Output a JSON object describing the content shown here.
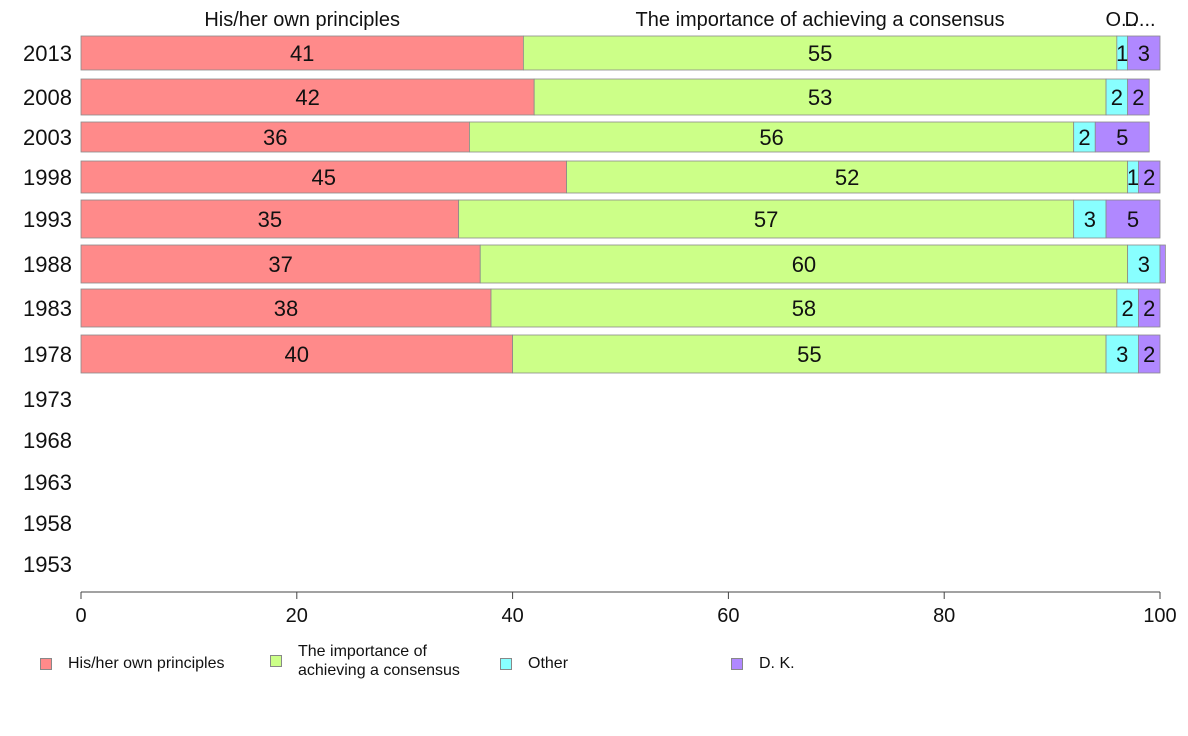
{
  "chart_data": {
    "type": "bar",
    "orientation": "horizontal",
    "stacked": true,
    "categories": [
      "2013",
      "2008",
      "2003",
      "1998",
      "1993",
      "1988",
      "1983",
      "1978",
      "1973",
      "1968",
      "1963",
      "1958",
      "1953"
    ],
    "series": [
      {
        "name": "His/her own principles",
        "header": "His/her own principles",
        "color": "#ff8a8a",
        "values": [
          41,
          42,
          36,
          45,
          35,
          37,
          38,
          40,
          null,
          null,
          null,
          null,
          null
        ]
      },
      {
        "name": "The importance of achieving a consensus",
        "header": "The importance of achieving a consensus",
        "color": "#ccff88",
        "values": [
          55,
          53,
          56,
          52,
          57,
          60,
          58,
          55,
          null,
          null,
          null,
          null,
          null
        ]
      },
      {
        "name": "Other",
        "header": "O...",
        "color": "#88ffff",
        "values": [
          1,
          2,
          2,
          1,
          3,
          3,
          2,
          3,
          null,
          null,
          null,
          null,
          null
        ]
      },
      {
        "name": "D. K.",
        "header": "D...",
        "color": "#b088ff",
        "values": [
          3,
          2,
          5,
          2,
          5,
          0.5,
          2,
          2,
          null,
          null,
          null,
          null,
          null
        ]
      }
    ],
    "data_labels": [
      [
        "41",
        "55",
        "1",
        "3"
      ],
      [
        "42",
        "53",
        "2",
        "2"
      ],
      [
        "36",
        "56",
        "2",
        "5"
      ],
      [
        "45",
        "52",
        "1",
        "2"
      ],
      [
        "35",
        "57",
        "3",
        "5"
      ],
      [
        "37",
        "60",
        "3",
        ""
      ],
      [
        "38",
        "58",
        "2",
        "2"
      ],
      [
        "40",
        "55",
        "3",
        "2"
      ]
    ],
    "xlim": [
      0,
      100
    ],
    "xticks": [
      "0",
      "20",
      "40",
      "60",
      "80",
      "100"
    ],
    "xlabel": "",
    "ylabel": "",
    "title": "",
    "grid": false,
    "legend_position": "bottom"
  },
  "legend": [
    {
      "label": "His/her own principles",
      "color": "#ff8a8a"
    },
    {
      "label": "The importance of achieving a consensus",
      "color": "#ccff88"
    },
    {
      "label": "Other",
      "color": "#88ffff"
    },
    {
      "label": "D. K.",
      "color": "#b088ff"
    }
  ]
}
